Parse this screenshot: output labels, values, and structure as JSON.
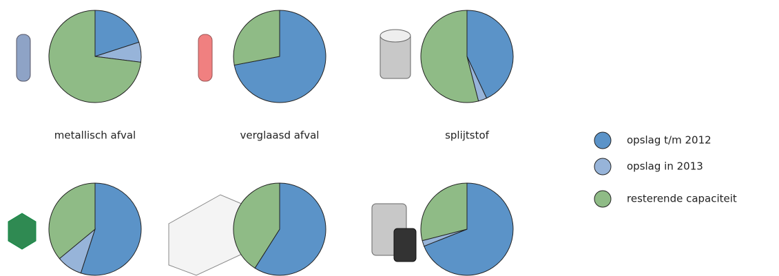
{
  "legend": {
    "items": [
      {
        "name": "opslag t/m 2012",
        "color": "#5b93c8"
      },
      {
        "name": "opslag in 2013",
        "color": "#97b4d9"
      },
      {
        "name": "resterende capaciteit",
        "color": "#8fbb86"
      }
    ]
  },
  "chart_data": [
    {
      "type": "pie",
      "title": "metallisch afval",
      "values": [
        20,
        7,
        73
      ]
    },
    {
      "type": "pie",
      "title": "verglaasd afval",
      "values": [
        72,
        0,
        28
      ]
    },
    {
      "type": "pie",
      "title": "splijtstof",
      "values": [
        43,
        3,
        54
      ]
    },
    {
      "type": "pie",
      "values": [
        55,
        9,
        36
      ]
    },
    {
      "type": "pie",
      "values": [
        59,
        0,
        41
      ]
    },
    {
      "type": "pie",
      "values": [
        69,
        2,
        29
      ]
    }
  ]
}
